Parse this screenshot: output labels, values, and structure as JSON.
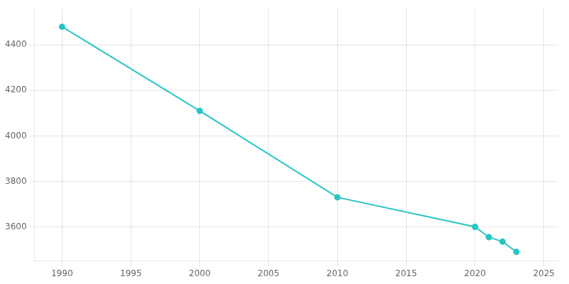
{
  "chart_data": {
    "type": "line",
    "x": [
      1990,
      2000,
      2010,
      2020,
      2021,
      2022,
      2023
    ],
    "values": [
      4480,
      4110,
      3730,
      3600,
      3555,
      3535,
      3490
    ],
    "color": "#29C5C5",
    "marker": "circle",
    "xlim": [
      1988,
      2026
    ],
    "ylim": [
      3450,
      4560
    ],
    "xticks": [
      1990,
      1995,
      2000,
      2005,
      2010,
      2015,
      2020,
      2025
    ],
    "yticks": [
      3600,
      3800,
      4000,
      4200,
      4400
    ],
    "grid": true
  }
}
